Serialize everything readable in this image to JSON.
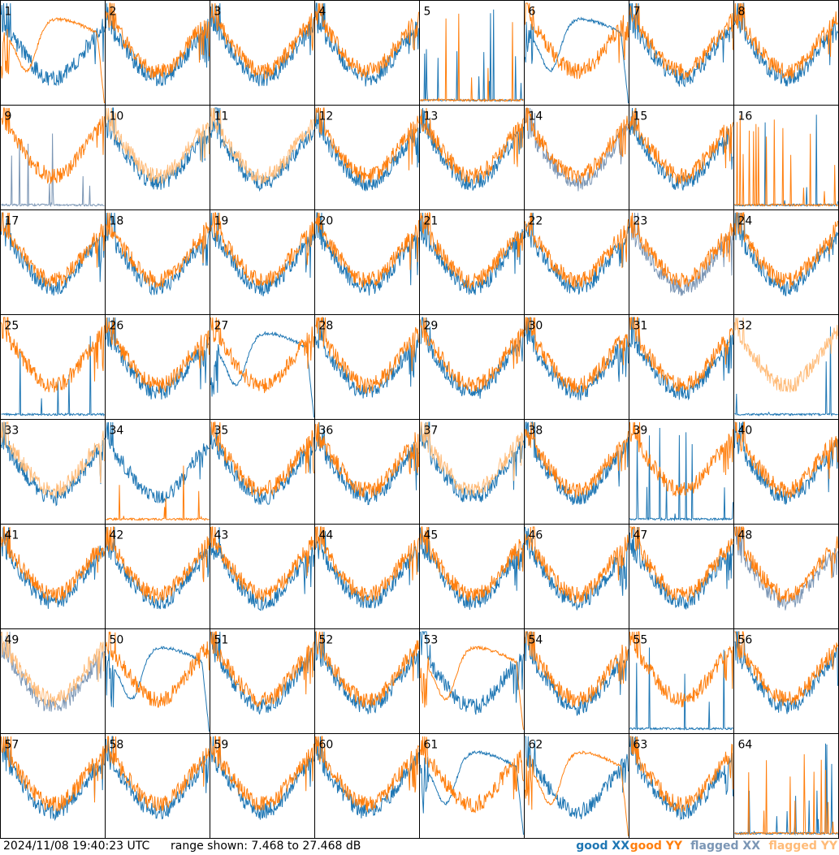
{
  "chart_data": {
    "type": "line",
    "layout": "8x8 small multiples of per-input spectra",
    "panel_labels": [
      "1",
      "2",
      "3",
      "4",
      "5",
      "6",
      "7",
      "8",
      "9",
      "10",
      "11",
      "12",
      "13",
      "14",
      "15",
      "16",
      "17",
      "18",
      "19",
      "20",
      "21",
      "22",
      "23",
      "24",
      "25",
      "26",
      "27",
      "28",
      "29",
      "30",
      "31",
      "32",
      "33",
      "34",
      "35",
      "36",
      "37",
      "38",
      "39",
      "40",
      "41",
      "42",
      "43",
      "44",
      "45",
      "46",
      "47",
      "48",
      "49",
      "50",
      "51",
      "52",
      "53",
      "54",
      "55",
      "56",
      "57",
      "58",
      "59",
      "60",
      "61",
      "62",
      "63",
      "64"
    ],
    "timestamp": "2024/11/08 19:40:23 UTC",
    "range_text": "range shown: 7.468 to 27.468 dB",
    "ylim": [
      7.468,
      27.468
    ],
    "legend": [
      {
        "label": "good XX",
        "color": "#1f77b4"
      },
      {
        "label": "good YY",
        "color": "#ff7f0e"
      },
      {
        "label": "flagged XX",
        "color": "#7b96b5"
      },
      {
        "label": "flagged YY",
        "color": "#ffbb78"
      }
    ],
    "panel_states": {
      "xx_flagged": [
        9,
        14,
        23,
        48,
        49
      ],
      "yy_flagged": [
        10,
        11,
        32,
        33,
        37,
        49
      ],
      "xx_low_spiky": [
        5,
        9,
        16,
        25,
        32,
        39,
        55,
        64
      ],
      "yy_low_spiky": [
        5,
        16,
        34,
        64
      ],
      "xx_smooth_bump": [
        6,
        27,
        50,
        61
      ],
      "yy_smooth_bump": [
        1,
        53,
        62
      ]
    }
  }
}
